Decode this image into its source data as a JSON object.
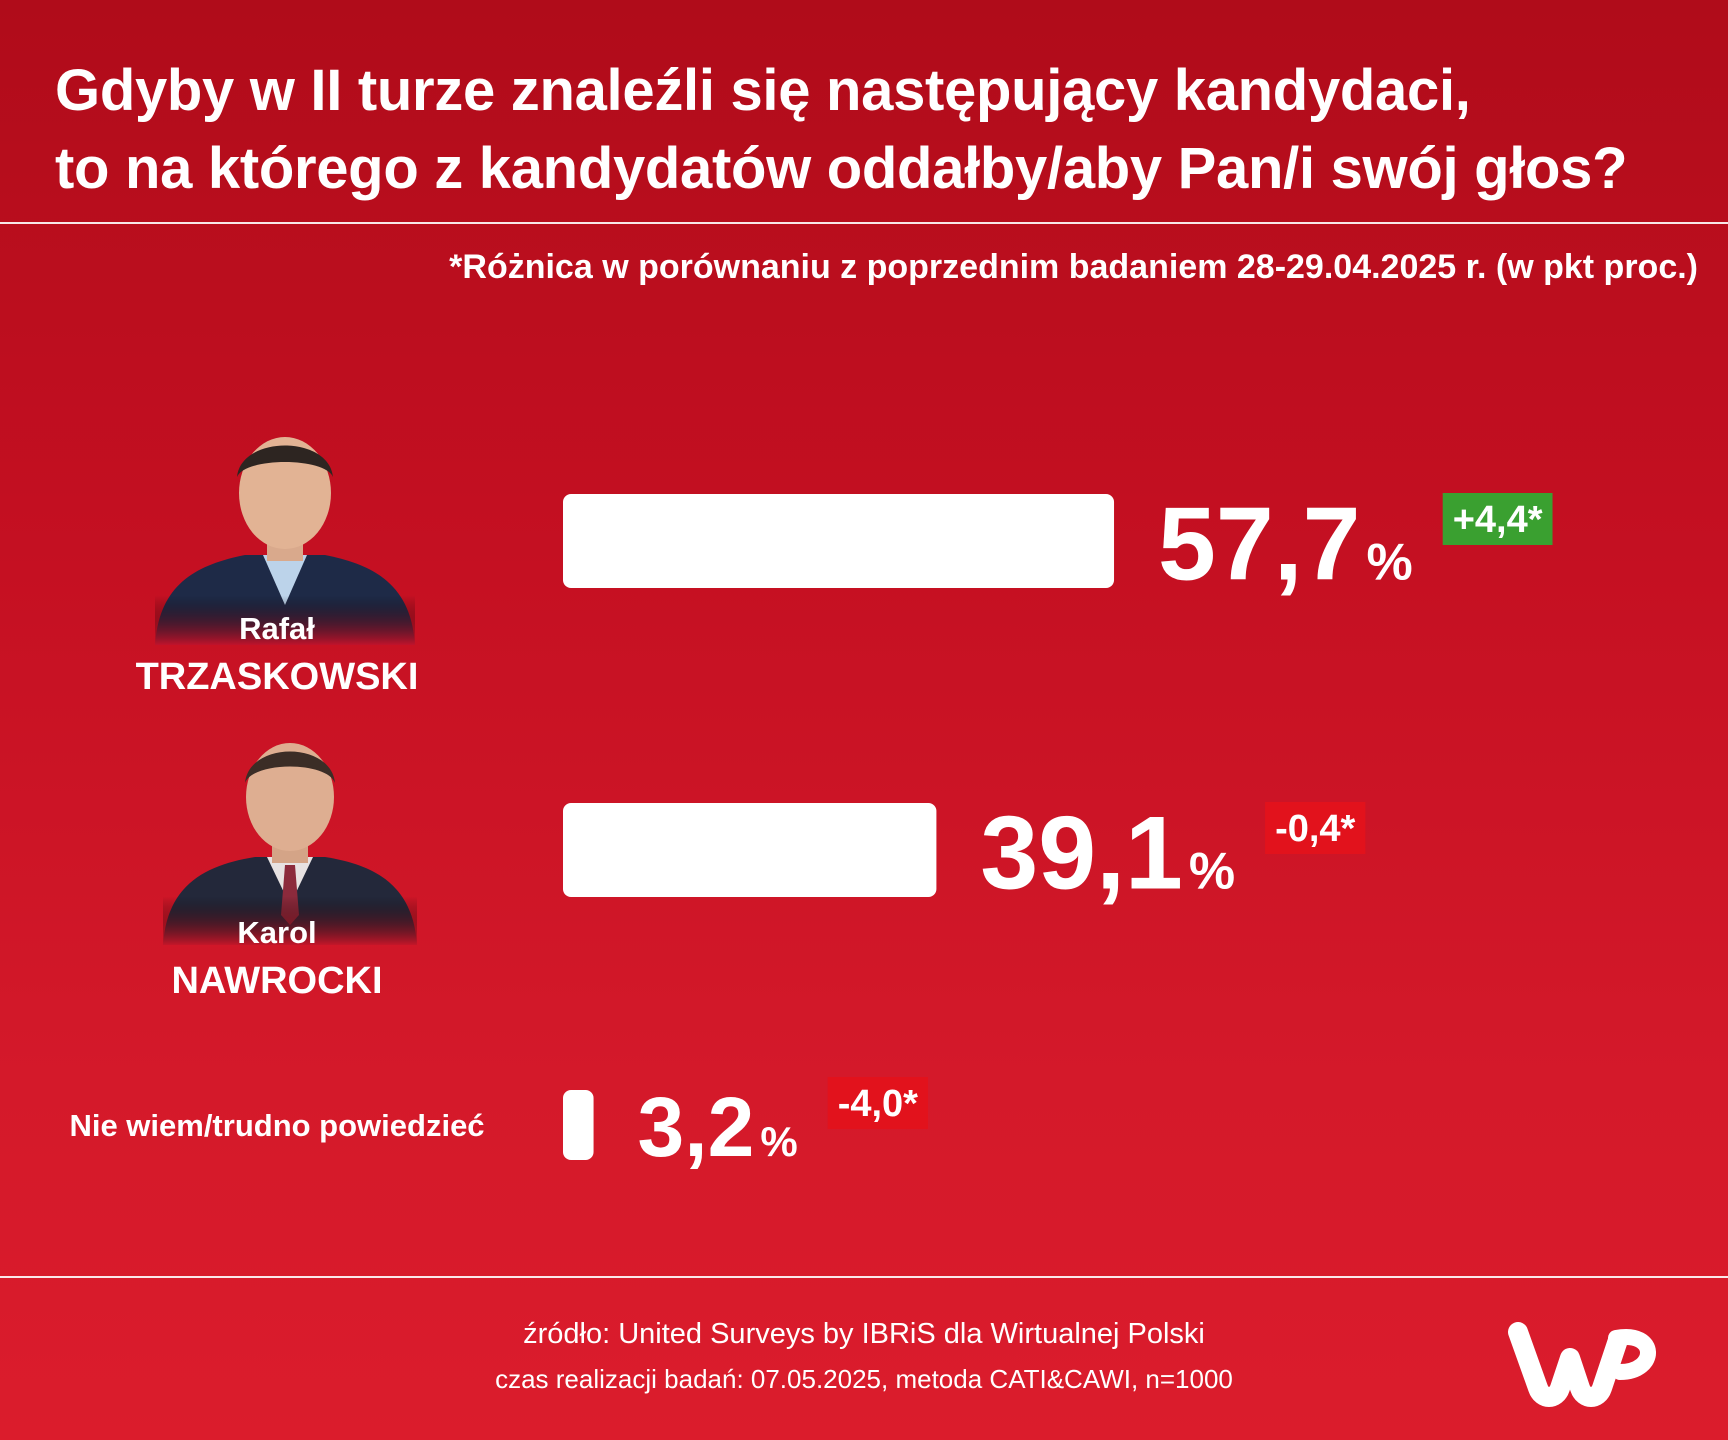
{
  "title_lines": [
    "Gdyby w II turze znaleźli się następujący kandydaci,",
    "to na którego z kandydatów oddałby/aby Pan/i swój głos?"
  ],
  "note": "*Różnica w porównaniu z poprzednim badaniem 28-29.04.2025 r. (w pkt proc.)",
  "chart_data": {
    "type": "bar",
    "orientation": "horizontal",
    "unit": "%",
    "categories": [
      "Rafał TRZASKOWSKI",
      "Karol NAWROCKI",
      "Nie wiem/trudno powiedzieć"
    ],
    "values": [
      57.7,
      39.1,
      3.2
    ],
    "value_labels": [
      "57,7",
      "39,1",
      "3,2"
    ],
    "change": [
      4.4,
      -0.4,
      -4.0
    ],
    "change_labels": [
      "+4,4*",
      "-0,4*",
      "-4,0*"
    ],
    "change_colors": [
      "#3aa030",
      "#e2121c",
      "#e2121c"
    ],
    "rows": [
      {
        "first": "Rafał",
        "last": "TRZASKOWSKI",
        "has_photo": true
      },
      {
        "first": "Karol",
        "last": "NAWROCKI",
        "has_photo": true
      },
      {
        "first": "",
        "last": "Nie wiem/trudno powiedzieć",
        "has_photo": false
      }
    ],
    "bar_color": "#ffffff",
    "legend": "none",
    "grid": false
  },
  "footer": {
    "source": "źródło: United Surveys by IBRiS dla Wirtualnej Polski",
    "meta": "czas realizacji badań: 07.05.2025, metoda CATI&CAWI, n=1000"
  },
  "colors": {
    "background_top": "#b00c1a",
    "background_bottom": "#db1c2c",
    "positive": "#3aa030",
    "negative": "#e2121c"
  }
}
